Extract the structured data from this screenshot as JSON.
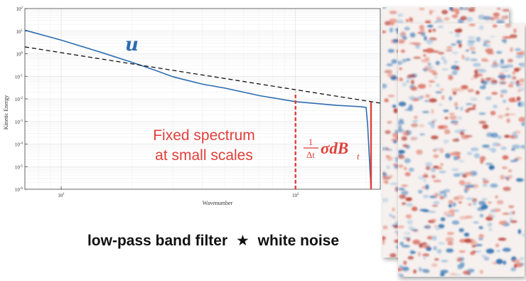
{
  "chart_data": {
    "type": "line",
    "xscale": "log",
    "yscale": "log",
    "xlim": [
      7,
      230
    ],
    "ylim": [
      1e-06,
      100
    ],
    "xlabel": "Wavenumber",
    "ylabel": "Kinetic Energy",
    "x_ticks": [
      {
        "value": 10,
        "label": "10",
        "exp": "1"
      },
      {
        "value": 100,
        "label": "10",
        "exp": "2"
      }
    ],
    "y_ticks": [
      {
        "value": 100,
        "label": "10",
        "exp": "2"
      },
      {
        "value": 10,
        "label": "10",
        "exp": "1"
      },
      {
        "value": 1,
        "label": "10",
        "exp": "0"
      },
      {
        "value": 0.1,
        "label": "10",
        "exp": "-1"
      },
      {
        "value": 0.01,
        "label": "10",
        "exp": "-2"
      },
      {
        "value": 0.001,
        "label": "10",
        "exp": "-3"
      },
      {
        "value": 0.0001,
        "label": "10",
        "exp": "-4"
      },
      {
        "value": 1e-05,
        "label": "10",
        "exp": "-5"
      },
      {
        "value": 1e-06,
        "label": "10",
        "exp": "-6"
      }
    ],
    "grid": true,
    "series": [
      {
        "name": "u",
        "color": "#2d6db1",
        "style": "solid",
        "x": [
          7,
          10,
          15,
          20,
          25,
          30,
          40,
          50,
          70,
          100,
          150,
          190,
          200,
          203,
          210
        ],
        "y": [
          11,
          4,
          1.1,
          0.42,
          0.19,
          0.095,
          0.045,
          0.03,
          0.014,
          0.0075,
          0.0052,
          0.0045,
          0.0042,
          0.0008,
          1e-06
        ]
      },
      {
        "name": "",
        "color": "#111111",
        "style": "dashed",
        "x": [
          7,
          230
        ],
        "y": [
          2.0,
          0.0065
        ]
      }
    ],
    "markers": [
      {
        "x": 100,
        "y_from": 1e-06,
        "y_to": 0.02,
        "style": "dashed",
        "color": "#e0403a"
      },
      {
        "x": 210,
        "y_from": 1e-06,
        "y_to": 0.0072,
        "style": "solid",
        "color": "#e0403a"
      }
    ],
    "annotations": {
      "series_label": "u",
      "fixed_spectrum": [
        "Fixed spectrum",
        "at small scales"
      ],
      "formula": {
        "num": "1",
        "den": "Δt",
        "body": "σdB",
        "sub": "t"
      }
    }
  },
  "caption": {
    "left": "low-pass band filter",
    "star": "★",
    "right": "white noise"
  },
  "colors": {
    "field_red": "#b83a30",
    "field_blue": "#2f6fb0"
  }
}
